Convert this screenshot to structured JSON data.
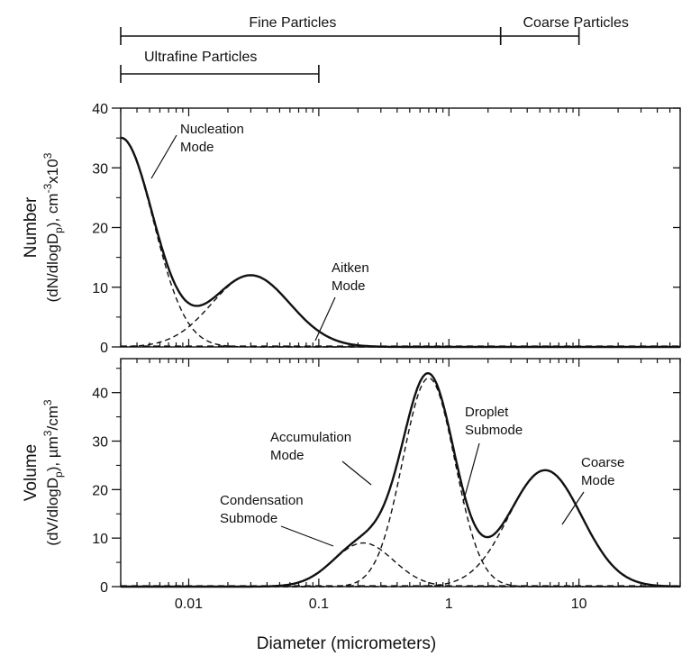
{
  "chart_data": [
    {
      "type": "line",
      "panel": "top",
      "title": "",
      "xlabel": "",
      "ylabel_line1": "Number",
      "ylabel_line2": "(dN/dlogD",
      "ylabel_sub": "p",
      "ylabel_line2_rest": "), cm",
      "ylabel_sup1": "-3",
      "ylabel_mid": "x10",
      "ylabel_sup2": "3",
      "x_scale": "log",
      "xlim": [
        0.003,
        60
      ],
      "ylim": [
        0,
        40
      ],
      "yticks": [
        0,
        10,
        20,
        30,
        40
      ],
      "components": [
        {
          "name": "nucleation",
          "amplitude": 35,
          "center_diameter": 0.003,
          "sigma_log10": 0.25,
          "style": "dashed"
        },
        {
          "name": "aitken",
          "amplitude": 12,
          "center_diameter": 0.03,
          "sigma_log10": 0.3,
          "style": "dashed"
        }
      ],
      "total_curve": {
        "style": "solid",
        "description_values": [
          {
            "x": 0.003,
            "y": 35
          },
          {
            "x": 0.01,
            "y": 7
          },
          {
            "x": 0.03,
            "y": 12
          },
          {
            "x": 0.1,
            "y": 2
          },
          {
            "x": 0.3,
            "y": 0
          }
        ]
      },
      "annotations": [
        {
          "text_lines": [
            "Nucleation",
            "Mode"
          ]
        },
        {
          "text_lines": [
            "Aitken",
            "Mode"
          ]
        }
      ]
    },
    {
      "type": "line",
      "panel": "bottom",
      "title": "",
      "xlabel": "Diameter (micrometers)",
      "ylabel_line1": "Volume",
      "ylabel_line2": "(dV/dlogD",
      "ylabel_sub": "p",
      "ylabel_line2_rest": "), µm",
      "ylabel_sup1": "3",
      "ylabel_mid": "/cm",
      "ylabel_sup2": "3",
      "x_scale": "log",
      "xlim": [
        0.003,
        60
      ],
      "ylim": [
        0,
        47
      ],
      "yticks": [
        0,
        10,
        20,
        30,
        40
      ],
      "xticks": [
        {
          "value": 0.01,
          "label": "0.01"
        },
        {
          "value": 0.1,
          "label": "0.1"
        },
        {
          "value": 1,
          "label": "1"
        },
        {
          "value": 10,
          "label": "10"
        }
      ],
      "components": [
        {
          "name": "condensation",
          "amplitude": 9,
          "center_diameter": 0.22,
          "sigma_log10": 0.23,
          "style": "dashed"
        },
        {
          "name": "droplet",
          "amplitude": 43,
          "center_diameter": 0.7,
          "sigma_log10": 0.2,
          "style": "dashed"
        },
        {
          "name": "coarse",
          "amplitude": 24,
          "center_diameter": 5.5,
          "sigma_log10": 0.28,
          "style": "dashed"
        }
      ],
      "total_curve": {
        "style": "solid",
        "description_values": [
          {
            "x": 0.1,
            "y": 2
          },
          {
            "x": 0.7,
            "y": 44
          },
          {
            "x": 2,
            "y": 16
          },
          {
            "x": 5.5,
            "y": 24
          },
          {
            "x": 30,
            "y": 0
          }
        ]
      },
      "annotations": [
        {
          "text_lines": [
            "Accumulation",
            "Mode"
          ]
        },
        {
          "text_lines": [
            "Droplet",
            "Submode"
          ]
        },
        {
          "text_lines": [
            "Coarse",
            "Mode"
          ]
        },
        {
          "text_lines": [
            "Condensation",
            "Submode"
          ]
        }
      ]
    }
  ],
  "size_ranges": [
    {
      "label": "Fine Particles",
      "from": 0.003,
      "to": 2.5
    },
    {
      "label": "Coarse Particles",
      "from": 2.5,
      "to": 10
    },
    {
      "label": "Ultrafine Particles",
      "from": 0.003,
      "to": 0.1
    }
  ],
  "colors": {
    "axis": "#111111",
    "curve": "#111111",
    "background": "#ffffff"
  }
}
